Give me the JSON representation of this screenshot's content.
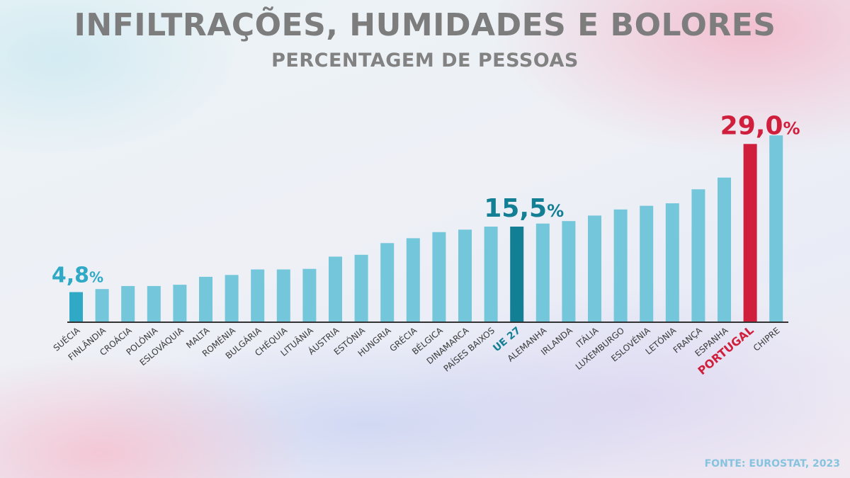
{
  "title": "INFILTRAÇÕES, HUMIDADES E BOLORES",
  "subtitle": "PERCENTAGEM DE PESSOAS",
  "source": "FONTE: EUROSTAT, 2023",
  "colors": {
    "bar": "#74c6da",
    "lowest": "#2fa9c6",
    "eu": "#137f95",
    "portugal": "#cf1f3c",
    "axis": "#333333",
    "tick_label": "#3a3a3a"
  },
  "chart_data": {
    "type": "bar",
    "title": "INFILTRAÇÕES, HUMIDADES E BOLORES",
    "subtitle": "PERCENTAGEM DE PESSOAS",
    "categories": [
      "SUÉCIA",
      "FINLÂNDIA",
      "CROÁCIA",
      "POLÓNIA",
      "ESLOVÁQUIA",
      "MALTA",
      "ROMÉNIA",
      "BULGÁRIA",
      "CHÉQUIA",
      "LITUÂNIA",
      "ÁUSTRIA",
      "ESTÓNIA",
      "HUNGRIA",
      "GRÉCIA",
      "BÉLGICA",
      "DINAMARCA",
      "PAÍSES BAIXOS",
      "UE 27",
      "ALEMANHA",
      "IRLANDA",
      "ITÁLIA",
      "LUXEMBURGO",
      "ESLOVÉNIA",
      "LETÓNIA",
      "FRANÇA",
      "ESPANHA",
      "PORTUGAL",
      "CHIPRE"
    ],
    "values": [
      4.8,
      5.3,
      5.8,
      5.8,
      6.0,
      7.3,
      7.6,
      8.5,
      8.5,
      8.6,
      10.6,
      10.9,
      12.8,
      13.6,
      14.6,
      15.0,
      15.5,
      15.5,
      16.0,
      16.4,
      17.3,
      18.3,
      18.9,
      19.3,
      21.6,
      23.5,
      29.0,
      30.4
    ],
    "ylim": [
      0,
      31
    ],
    "xlabel": "",
    "ylabel": "",
    "highlight": {
      "lowest": {
        "category": "SUÉCIA",
        "number": "4,8",
        "unit": "%"
      },
      "eu": {
        "category": "UE 27",
        "number": "15,5",
        "unit": "%"
      },
      "portugal": {
        "category": "PORTUGAL",
        "number": "29,0",
        "unit": "%"
      }
    },
    "grid": false,
    "legend": "none"
  }
}
